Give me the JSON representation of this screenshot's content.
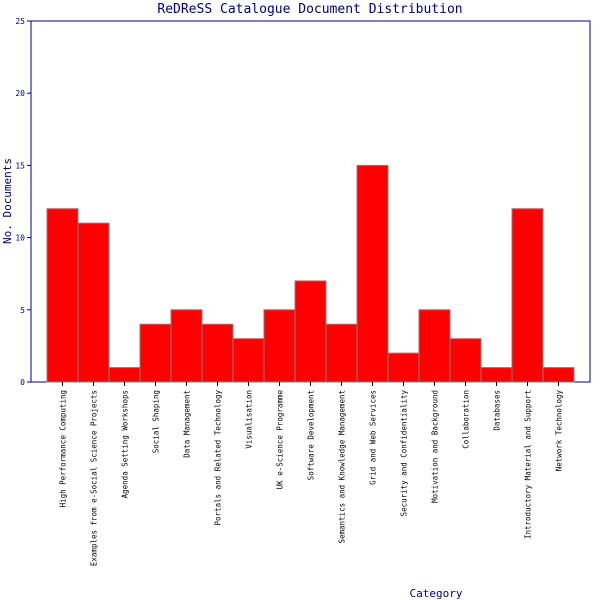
{
  "chart_data": {
    "type": "bar",
    "title": "ReDReSS Catalogue Document Distribution",
    "xlabel": "Category",
    "ylabel": "No. Documents",
    "ylim": [
      0,
      25
    ],
    "yticks": [
      0,
      5,
      10,
      15,
      20,
      25
    ],
    "grid": false,
    "legend": "none",
    "categories": [
      "High Performance Computing",
      "Examples from e-Social Science Projects",
      "Agenda Setting Workshops",
      "Social Shaping",
      "Data Management",
      "Portals and Related Technology",
      "Visualisation",
      "UK e-Science Programme",
      "Software Development",
      "Semantics and Knowledge Management",
      "Grid and Web Services",
      "Security and Confidentiality",
      "Motivation and Background",
      "Collaboration",
      "Databases",
      "Introductory Material and Support",
      "Network Technology"
    ],
    "values": [
      12,
      11,
      1,
      4,
      5,
      4,
      3,
      5,
      7,
      4,
      15,
      2,
      5,
      3,
      1,
      12,
      1
    ],
    "colors": {
      "bar_fill": "#ff0000",
      "bar_stroke": "#808080",
      "axis": "#000080",
      "text": "#000080",
      "category_text": "#000000"
    }
  }
}
